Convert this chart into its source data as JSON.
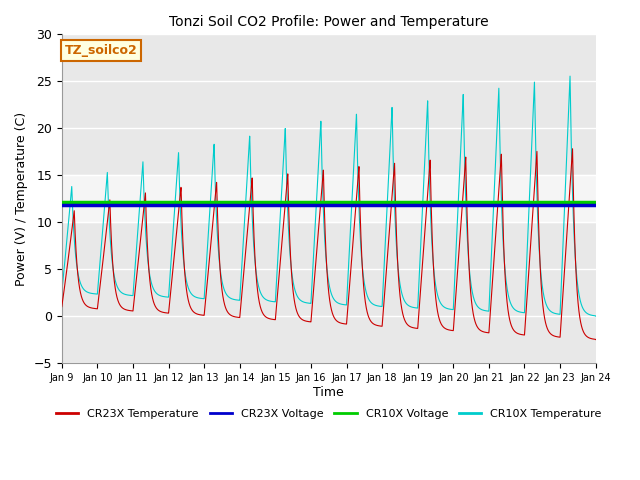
{
  "title": "Tonzi Soil CO2 Profile: Power and Temperature",
  "xlabel": "Time",
  "ylabel": "Power (V) / Temperature (C)",
  "ylim": [
    -5,
    30
  ],
  "xlim": [
    0,
    15
  ],
  "x_tick_labels": [
    "Jan 9",
    "Jan 10",
    "Jan 11",
    "Jan 12",
    "Jan 13",
    "Jan 14",
    "Jan 15",
    "Jan 16",
    "Jan 17",
    "Jan 18",
    "Jan 19",
    "Jan 20",
    "Jan 21",
    "Jan 22",
    "Jan 23",
    "Jan 24"
  ],
  "annotation_box": "TZ_soilco2",
  "cr23x_voltage_value": 11.8,
  "cr10x_voltage_value": 12.1,
  "color_cr23x_temp": "#cc0000",
  "color_cr23x_volt": "#0000cc",
  "color_cr10x_volt": "#00cc00",
  "color_cr10x_temp": "#00cccc",
  "background_outer": "#ffffff",
  "background_plot": "#e8e8e8",
  "bg_band_y1": 10,
  "bg_band_y2": 15,
  "legend_labels": [
    "CR23X Temperature",
    "CR23X Voltage",
    "CR10X Voltage",
    "CR10X Temperature"
  ]
}
